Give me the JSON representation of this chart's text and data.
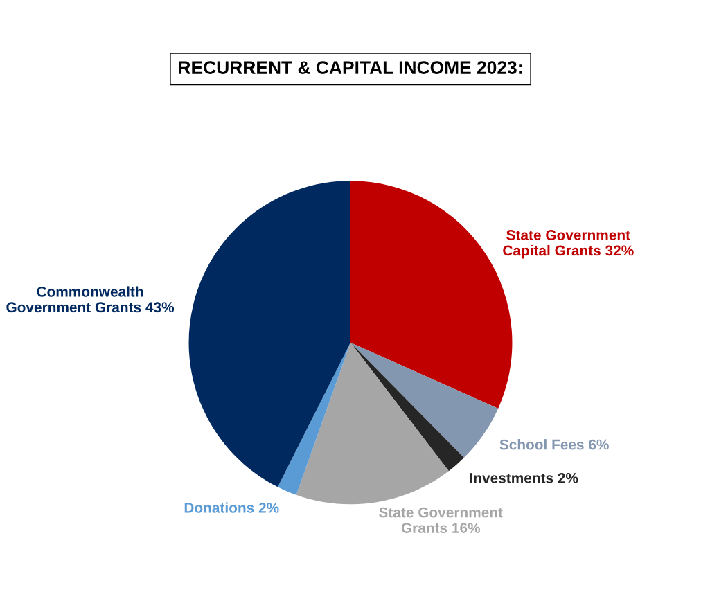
{
  "chart_data": {
    "type": "pie",
    "title": "RECURRENT & CAPITAL INCOME 2023:",
    "categories": [
      "State Government Capital Grants",
      "School Fees",
      "Investments",
      "State Government Grants",
      "Donations",
      "Commonwealth Government Grants"
    ],
    "values": [
      32,
      6,
      2,
      16,
      2,
      43
    ],
    "value_labels": [
      "32%",
      "6%",
      "2%",
      "16%",
      "2%",
      "43%"
    ],
    "colors": [
      "#c00000",
      "#8497b0",
      "#262626",
      "#a6a6a6",
      "#5b9bd5",
      "#002960"
    ],
    "legend": false
  }
}
